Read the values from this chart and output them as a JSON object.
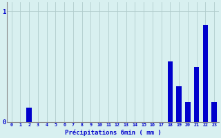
{
  "categories": [
    0,
    1,
    2,
    3,
    4,
    5,
    6,
    7,
    8,
    9,
    10,
    11,
    12,
    13,
    14,
    15,
    16,
    17,
    18,
    19,
    20,
    21,
    22,
    23
  ],
  "values": [
    0,
    0,
    0.13,
    0,
    0,
    0,
    0,
    0,
    0,
    0,
    0,
    0,
    0,
    0,
    0,
    0,
    0,
    0,
    0.55,
    0.32,
    0.18,
    0.5,
    0.88,
    0.18
  ],
  "bar_color": "#0000cc",
  "background_color": "#d8f0f0",
  "grid_color": "#b0cccc",
  "axis_color": "#888888",
  "text_color": "#0000cc",
  "xlabel": "Précipitations 6min ( mm )",
  "ylim": [
    0,
    1.08
  ],
  "yticks": [
    0,
    1
  ],
  "xlim": [
    -0.5,
    23.5
  ]
}
